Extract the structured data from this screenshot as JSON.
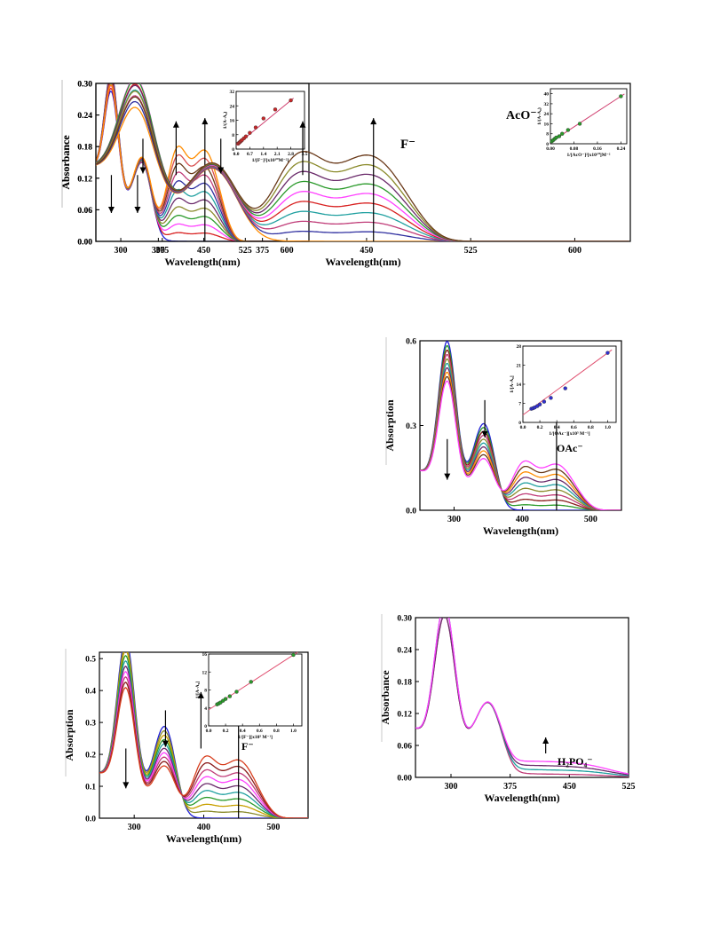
{
  "chart_data": [
    {
      "type": "line",
      "xlabel": "Wavelength(nm)",
      "ylabel": "Absorbance",
      "xlim": [
        255,
        640
      ],
      "ylim": [
        0,
        0.3
      ],
      "xticks": [
        300,
        375,
        450,
        525,
        600
      ],
      "yticks": [
        "0.00",
        "0.06",
        "0.12",
        "0.18",
        "0.24",
        "0.30"
      ],
      "ion_label": "F⁻",
      "series_colors": [
        "#1f1fd8",
        "#d82020",
        "#ff40ff",
        "#2a9a2a",
        "#8a8a2a",
        "#6a2a6a",
        "#20a0a0",
        "#3030a0",
        "#c03c78",
        "#6a3a1a",
        "#d85050",
        "#ff8c00"
      ],
      "peaks": {
        "p1": [
          0.19,
          0.255
        ],
        "p2": [
          0.15,
          0.14
        ],
        "p3": [
          0.0,
          0.18
        ],
        "p4": [
          0.0,
          0.18
        ]
      },
      "inset": {
        "xlabel": "1/[F⁻]²[x10¹⁰M⁻²]",
        "ylabel": "1/(A-A₀)",
        "xlim": [
          0,
          3.5
        ],
        "ylim": [
          0,
          32
        ],
        "xticks": [
          "0.0",
          "0.7",
          "1.4",
          "2.1",
          "2.8",
          "3.5"
        ],
        "yticks": [
          "0",
          "8",
          "16",
          "24",
          "32"
        ],
        "points": [
          [
            0.1,
            3
          ],
          [
            0.15,
            3.5
          ],
          [
            0.2,
            4
          ],
          [
            0.25,
            4.5
          ],
          [
            0.3,
            5
          ],
          [
            0.4,
            6
          ],
          [
            0.5,
            7
          ],
          [
            0.7,
            9
          ],
          [
            1.0,
            12
          ],
          [
            1.4,
            17
          ],
          [
            2.0,
            22
          ],
          [
            2.8,
            27
          ]
        ]
      }
    },
    {
      "type": "line",
      "xlabel": "Wavelength(nm)",
      "ylabel": "Absorbance",
      "xlim": [
        255,
        640
      ],
      "ylim": [
        0,
        0.3
      ],
      "xticks": [
        300,
        375,
        450,
        525,
        600
      ],
      "yticks": [
        "0.00",
        "0.06",
        "0.12",
        "0.18",
        "0.24",
        "0.30"
      ],
      "ion_label": "AcO⁻",
      "series_colors": [
        "#ff8c00",
        "#3030a0",
        "#c03c78",
        "#20a0a0",
        "#d82020",
        "#ff40ff",
        "#2a9a2a",
        "#6a2a6a",
        "#8a8a2a",
        "#6a3a1a"
      ],
      "peaks": {
        "p1": [
          0.14,
          0.25
        ],
        "p2": [
          0.14,
          0.13
        ],
        "p3": [
          0.0,
          0.17
        ],
        "p4": [
          0.0,
          0.17
        ]
      },
      "inset": {
        "xlabel": "1/[AcO⁻]²[x10¹⁰]M⁻²",
        "ylabel": "1/(A-A₀)",
        "xlim": [
          0,
          0.26
        ],
        "ylim": [
          0,
          44
        ],
        "xticks": [
          "0.00",
          "0.08",
          "0.16",
          "0.24"
        ],
        "yticks": [
          "0",
          "8",
          "16",
          "24",
          "32",
          "40"
        ],
        "points": [
          [
            0.005,
            2
          ],
          [
            0.01,
            3
          ],
          [
            0.015,
            4
          ],
          [
            0.02,
            5
          ],
          [
            0.03,
            6
          ],
          [
            0.04,
            8
          ],
          [
            0.06,
            11
          ],
          [
            0.1,
            16
          ],
          [
            0.24,
            38
          ]
        ]
      }
    },
    {
      "type": "line",
      "xlabel": "Wavelength(nm)",
      "ylabel": "Absorption",
      "xlim": [
        250,
        545
      ],
      "ylim": [
        0,
        0.6
      ],
      "xticks": [
        300,
        400,
        500
      ],
      "yticks": [
        "0.0",
        "0.3",
        "0.6"
      ],
      "ion_label": "OAc⁻",
      "series_colors": [
        "#1f1fd8",
        "#2a9a2a",
        "#8a1a1a",
        "#c03c78",
        "#8a8a2a",
        "#20a0a0",
        "#6a2a6a",
        "#ff8c00",
        "#6a3a1a",
        "#ff40ff"
      ],
      "peaks": {
        "p1": [
          0.4,
          0.54
        ],
        "p2": [
          0.18,
          0.31
        ],
        "p3": [
          0.0,
          0.17
        ],
        "p4": [
          0.0,
          0.17
        ]
      },
      "inset": {
        "xlabel": "1/[OAc⁻][x10⁵ M⁻¹]",
        "ylabel": "1/[A-A₀]",
        "xlim": [
          0,
          1.1
        ],
        "ylim": [
          0,
          28
        ],
        "xticks": [
          "0.0",
          "0.2",
          "0.4",
          "0.6",
          "0.8",
          "1.0"
        ],
        "yticks": [
          "0",
          "7",
          "14",
          "21",
          "28"
        ],
        "points": [
          [
            0.1,
            5
          ],
          [
            0.12,
            5.2
          ],
          [
            0.14,
            5.5
          ],
          [
            0.17,
            6
          ],
          [
            0.2,
            6.6
          ],
          [
            0.25,
            7.6
          ],
          [
            0.33,
            9
          ],
          [
            0.5,
            12.5
          ],
          [
            1.0,
            25.5
          ]
        ]
      }
    },
    {
      "type": "line",
      "xlabel": "Wavelength(nm)",
      "ylabel": "Absorption",
      "xlim": [
        250,
        550
      ],
      "ylim": [
        0,
        0.52
      ],
      "xticks": [
        300,
        400,
        500
      ],
      "yticks": [
        "0.0",
        "0.1",
        "0.2",
        "0.3",
        "0.4",
        "0.5"
      ],
      "ion_label": "F⁻",
      "series_colors": [
        "#1f1fd8",
        "#8a8a2a",
        "#c8a000",
        "#2a9a2a",
        "#20a0a0",
        "#6a2a6a",
        "#ff40ff",
        "#c03c78",
        "#8a1a1a",
        "#d84020"
      ],
      "peaks": {
        "p1": [
          0.35,
          0.5
        ],
        "p2": [
          0.16,
          0.29
        ],
        "p3": [
          0.0,
          0.19
        ],
        "p4": [
          0.0,
          0.19
        ]
      },
      "inset": {
        "xlabel": "1/[F⁻][x10⁵ M⁻¹]",
        "ylabel": "1/[A-A₀]",
        "xlim": [
          0,
          1.1
        ],
        "ylim": [
          0,
          16
        ],
        "xticks": [
          "0.0",
          "0.2",
          "0.4",
          "0.6",
          "0.8",
          "1.0"
        ],
        "yticks": [
          "0",
          "4",
          "8",
          "12",
          "16"
        ],
        "points": [
          [
            0.1,
            4.8
          ],
          [
            0.12,
            5
          ],
          [
            0.14,
            5.2
          ],
          [
            0.17,
            5.6
          ],
          [
            0.2,
            6
          ],
          [
            0.25,
            6.6
          ],
          [
            0.33,
            7.6
          ],
          [
            0.5,
            9.8
          ],
          [
            1.0,
            15.8
          ]
        ]
      }
    },
    {
      "type": "line",
      "xlabel": "Wavelength(nm)",
      "ylabel": "Absorbance",
      "xlim": [
        255,
        525
      ],
      "ylim": [
        0,
        0.3
      ],
      "xticks": [
        300,
        375,
        450,
        525
      ],
      "yticks": [
        "0.00",
        "0.06",
        "0.12",
        "0.18",
        "0.24",
        "0.30"
      ],
      "ion_label": "H₂PO₄⁻",
      "series_colors": [
        "#c03c78",
        "#20a0a0",
        "#6a2a6a",
        "#ff40ff"
      ]
    }
  ]
}
